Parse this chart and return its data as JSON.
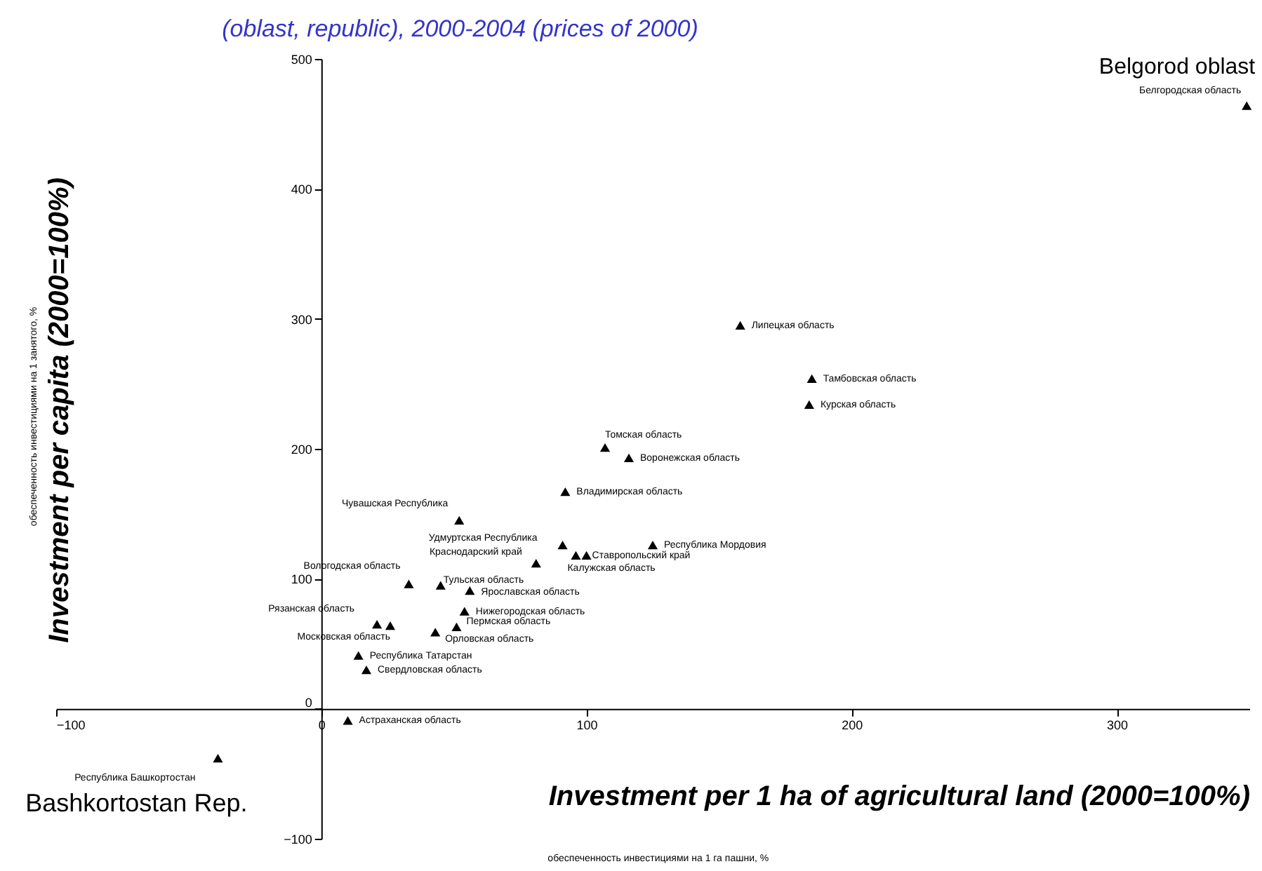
{
  "chart_data": {
    "type": "scatter",
    "title": "(oblast, republic), 2000-2004 (prices of 2000)",
    "xlabel": "Investment per 1 ha of agricultural land (2000=100%)",
    "ylabel": "Investment per capita (2000=100%)",
    "xlim": [
      -100,
      350
    ],
    "xticks": [
      -100,
      0,
      100,
      200,
      300
    ],
    "ylim": [
      -100,
      500
    ],
    "yticks": [
      -100,
      0,
      100,
      200,
      300,
      400,
      500
    ],
    "grid": false,
    "marker": "triangle",
    "series": [
      {
        "color": "#000000",
        "x": [
          349,
          158,
          185,
          184,
          107,
          116,
          92,
          52,
          125,
          91,
          81,
          96,
          100,
          33,
          45,
          56,
          54,
          21,
          26,
          51,
          43,
          14,
          17,
          10,
          -39
        ],
        "values": [
          464,
          295,
          254,
          234,
          201,
          193,
          167,
          145,
          126,
          126,
          112,
          118,
          118,
          96,
          95,
          91,
          75,
          65,
          64,
          63,
          59,
          41,
          30,
          -9,
          -38
        ]
      }
    ],
    "annotations": [
      {
        "text": "Белгородская область",
        "x": 349,
        "y": 464
      },
      {
        "text": "Липецкая область",
        "x": 158,
        "y": 295
      },
      {
        "text": "Тамбовская область",
        "x": 185,
        "y": 254
      },
      {
        "text": "Курская область",
        "x": 184,
        "y": 234
      },
      {
        "text": "Томская область",
        "x": 107,
        "y": 201
      },
      {
        "text": "Воронежская область",
        "x": 116,
        "y": 193
      },
      {
        "text": "Владимирская область",
        "x": 92,
        "y": 167
      },
      {
        "text": "Чувашская Республика",
        "x": 52,
        "y": 145
      },
      {
        "text": "Республика Мордовия",
        "x": 125,
        "y": 126
      },
      {
        "text": "Удмуртская Республика",
        "x": 91,
        "y": 126
      },
      {
        "text": "Краснодарский край",
        "x": 81,
        "y": 112
      },
      {
        "text": "Калужская область",
        "x": 96,
        "y": 118
      },
      {
        "text": "Ставропольский край",
        "x": 100,
        "y": 118
      },
      {
        "text": "Вологодская область",
        "x": 33,
        "y": 96
      },
      {
        "text": "Тульская область",
        "x": 45,
        "y": 95
      },
      {
        "text": "Ярославская область",
        "x": 56,
        "y": 91
      },
      {
        "text": "Нижегородская область",
        "x": 54,
        "y": 75
      },
      {
        "text": "Рязанская область",
        "x": 21,
        "y": 65
      },
      {
        "text": "Московская область",
        "x": 26,
        "y": 64
      },
      {
        "text": "Пермская область",
        "x": 51,
        "y": 63
      },
      {
        "text": "Орловская область",
        "x": 43,
        "y": 59
      },
      {
        "text": "Республика Татарстан",
        "x": 14,
        "y": 41
      },
      {
        "text": "Свердловская область",
        "x": 17,
        "y": 30
      },
      {
        "text": "Астраханская область",
        "x": 10,
        "y": -9
      },
      {
        "text": "Республика Башкортостан",
        "x": -39,
        "y": -38
      },
      {
        "text": "Belgorod oblast",
        "x": 349,
        "y": 464
      },
      {
        "text": "Bashkortostan Rep.",
        "x": -39,
        "y": -38
      },
      "обеспеченность инвестициями на 1 га пашни, %",
      "обеспеченность инвестициями на 1 занятого, %"
    ]
  }
}
